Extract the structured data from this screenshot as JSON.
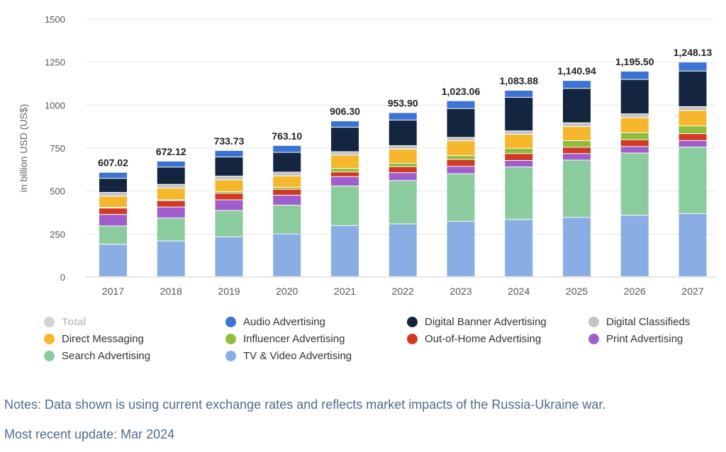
{
  "chart_data": {
    "type": "bar",
    "stacked": true,
    "ylabel": "in billion USD (US$)",
    "ylim": [
      0,
      1500
    ],
    "yticks": [
      0,
      250,
      500,
      750,
      1000,
      1250,
      1500
    ],
    "ytick_labels": [
      "0",
      "250",
      "500",
      "750",
      "1000",
      "1250",
      "1500"
    ],
    "categories": [
      "2017",
      "2018",
      "2019",
      "2020",
      "2021",
      "2022",
      "2023",
      "2024",
      "2025",
      "2026",
      "2027"
    ],
    "totals": [
      607.02,
      672.12,
      733.73,
      763.1,
      906.3,
      953.9,
      1023.06,
      1083.88,
      1140.94,
      1195.5,
      1248.13
    ],
    "total_labels": [
      "607.02",
      "672.12",
      "733.73",
      "763.10",
      "906.30",
      "953.90",
      "1,023.06",
      "1,083.88",
      "1,140.94",
      "1,195.50",
      "1,248.13"
    ],
    "series": [
      {
        "name": "TV & Video Advertising",
        "color": "#8aaee3",
        "values": [
          188,
          208,
          232,
          248,
          297,
          307,
          322,
          333,
          345,
          357,
          367
        ]
      },
      {
        "name": "Search Advertising",
        "color": "#8bcc9f",
        "values": [
          107,
          133,
          153,
          168,
          230,
          252,
          277,
          305,
          333,
          362,
          387
        ]
      },
      {
        "name": "Print Advertising",
        "color": "#a05ecd",
        "values": [
          67,
          64,
          62,
          58,
          55,
          46,
          43,
          38,
          38,
          38,
          38
        ]
      },
      {
        "name": "Out-of-Home Advertising",
        "color": "#d03a22",
        "values": [
          37,
          37,
          38,
          34,
          27,
          35,
          40,
          40,
          37,
          40,
          40
        ]
      },
      {
        "name": "Influencer Advertising",
        "color": "#8dbd3a",
        "values": [
          4,
          6,
          10,
          12,
          20,
          20,
          22,
          30,
          38,
          40,
          45
        ]
      },
      {
        "name": "Direct Messaging",
        "color": "#f7b72d",
        "values": [
          65,
          67,
          68,
          66,
          78,
          82,
          86,
          82,
          82,
          88,
          90
        ]
      },
      {
        "name": "Digital Classifieds",
        "color": "#c4c4c4",
        "values": [
          22,
          22,
          22,
          22,
          20,
          20,
          20,
          20,
          22,
          22,
          22
        ]
      },
      {
        "name": "Digital Banner Advertising",
        "color": "#14253f",
        "values": [
          82,
          100,
          111,
          115,
          142,
          149,
          168,
          195,
          200,
          200,
          207
        ]
      },
      {
        "name": "Audio Advertising",
        "color": "#3b74d4",
        "values": [
          35,
          35,
          38,
          40,
          37,
          43,
          45,
          41,
          46,
          48,
          52
        ]
      }
    ]
  },
  "legend": [
    [
      {
        "label": "Total",
        "color": "#d4d4d4",
        "active": false
      },
      {
        "label": "Audio Advertising",
        "color": "#3b74d4",
        "active": true
      },
      {
        "label": "Digital Banner Advertising",
        "color": "#14253f",
        "active": true
      },
      {
        "label": "Digital Classifieds",
        "color": "#c4c4c4",
        "active": true
      }
    ],
    [
      {
        "label": "Direct Messaging",
        "color": "#f7b72d",
        "active": true
      },
      {
        "label": "Influencer Advertising",
        "color": "#8dbd3a",
        "active": true
      },
      {
        "label": "Out-of-Home Advertising",
        "color": "#d03a22",
        "active": true
      },
      {
        "label": "Print Advertising",
        "color": "#a05ecd",
        "active": true
      }
    ],
    [
      {
        "label": "Search Advertising",
        "color": "#8bcc9f",
        "active": true
      },
      {
        "label": "TV & Video Advertising",
        "color": "#8aaee3",
        "active": true
      }
    ]
  ],
  "notes": "Notes: Data shown is using current exchange rates and reflects market impacts of the Russia-Ukraine war.",
  "update": "Most recent update: Mar 2024"
}
